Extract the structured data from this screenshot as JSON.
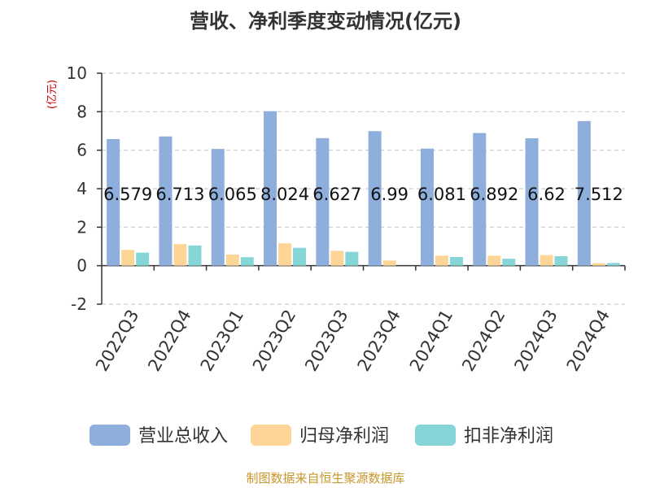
{
  "chart_data": {
    "type": "bar",
    "title": "营收、净利季度变动情况(亿元)",
    "unit_label": "(亿元)",
    "categories": [
      "2022Q3",
      "2022Q4",
      "2023Q1",
      "2023Q2",
      "2023Q3",
      "2023Q4",
      "2024Q1",
      "2024Q2",
      "2024Q3",
      "2024Q4"
    ],
    "series": [
      {
        "name": "营业总收入",
        "color": "#8eaedc",
        "values": [
          6.579,
          6.713,
          6.065,
          8.024,
          6.627,
          6.99,
          6.081,
          6.892,
          6.62,
          7.512
        ]
      },
      {
        "name": "归母净利润",
        "color": "#fdd596",
        "values": [
          0.82,
          1.12,
          0.58,
          1.16,
          0.77,
          0.27,
          0.52,
          0.52,
          0.55,
          0.13
        ]
      },
      {
        "name": "扣非净利润",
        "color": "#86d6d7",
        "values": [
          0.68,
          1.05,
          0.44,
          0.93,
          0.72,
          0.0,
          0.45,
          0.36,
          0.49,
          0.14
        ]
      }
    ],
    "data_labels": [
      "6.579",
      "6.713",
      "6.065",
      "8.024",
      "6.627",
      "6.99",
      "6.081",
      "6.892",
      "6.62",
      "7.512"
    ],
    "ylim": [
      -2,
      10
    ],
    "yticks": [
      -2,
      0,
      2,
      4,
      6,
      8,
      10
    ],
    "grid": true,
    "legend_position": "bottom"
  },
  "source": "制图数据来自恒生聚源数据库",
  "colors": {
    "title": "#333333",
    "unit": "#cc0000",
    "source": "#c8962a",
    "axis": "#333333",
    "grid": "#cccccc"
  }
}
